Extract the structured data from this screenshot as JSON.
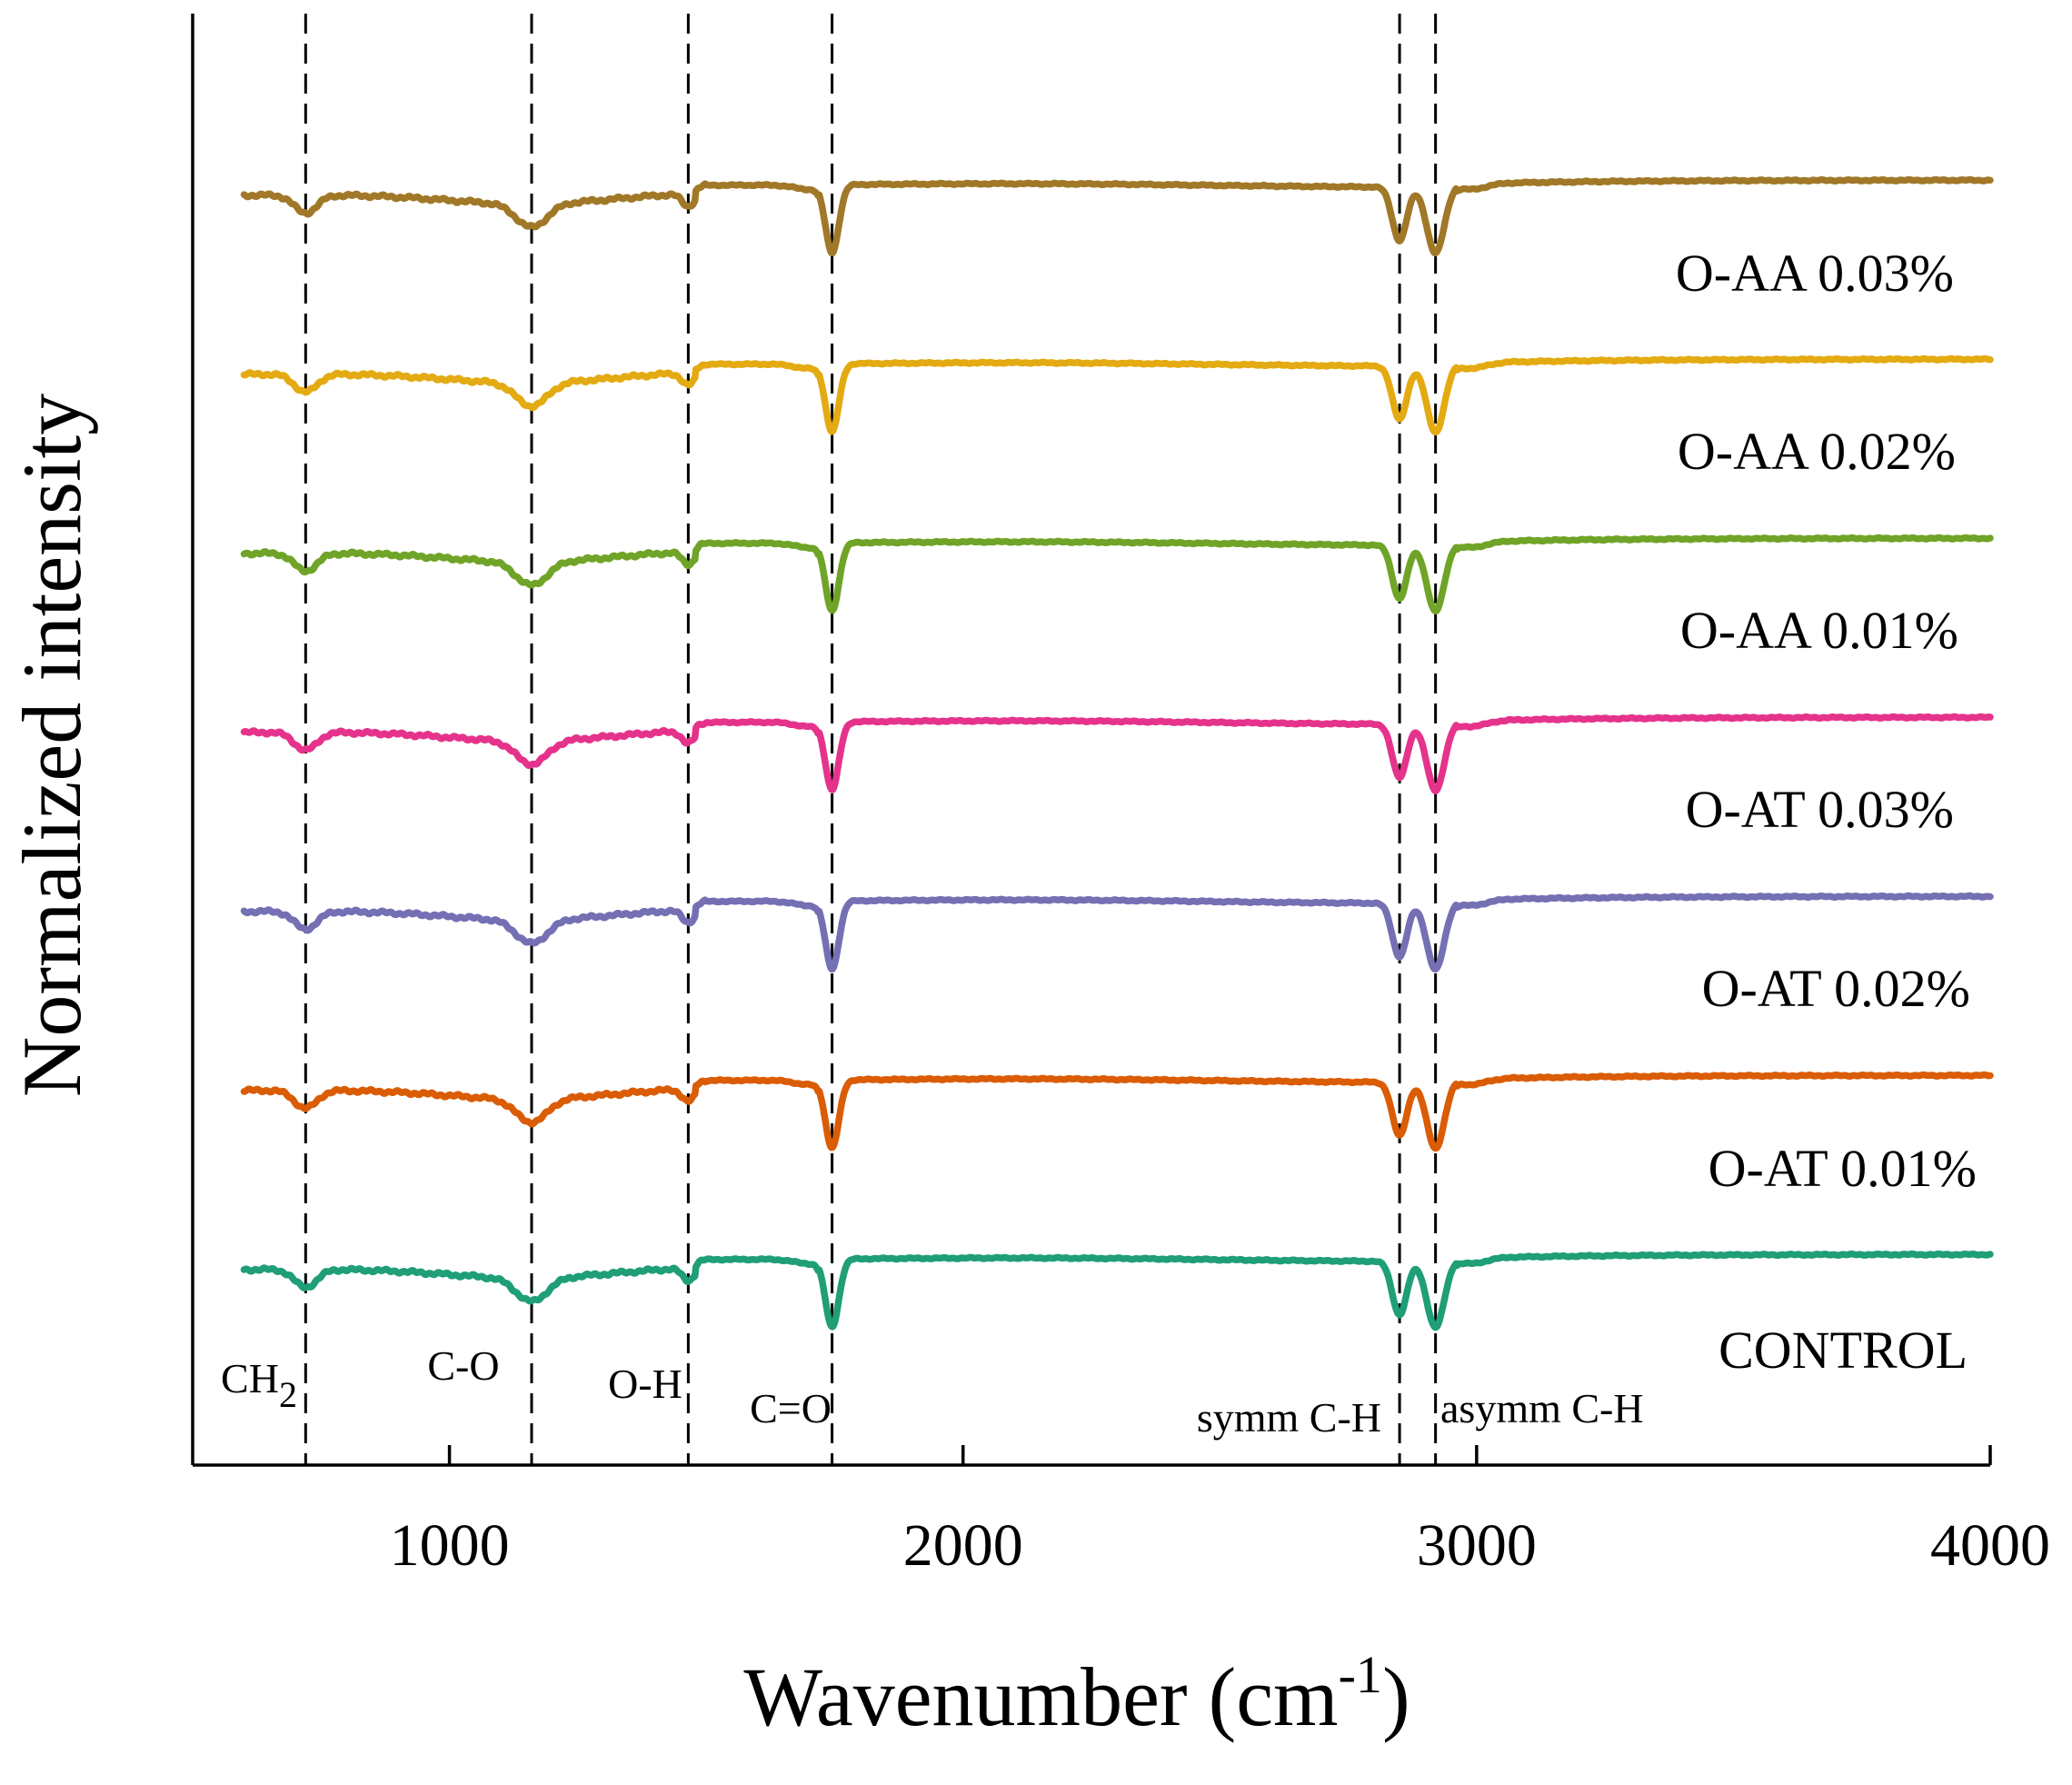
{
  "chart_data": {
    "type": "line",
    "title": "",
    "xlabel": "Wavenumber (cm",
    "xlabel_sup": "-1",
    "xlabel_close": ")",
    "ylabel": "Normalized intensity",
    "xlim": [
      500,
      4000
    ],
    "x_ticks": [
      1000,
      2000,
      3000,
      4000
    ],
    "x_tick_labels": [
      "1000",
      "2000",
      "3000",
      "4000"
    ],
    "ylim": [
      0,
      8
    ],
    "grid": false,
    "legend": "inline-right",
    "x_range": [
      600,
      4000
    ],
    "peaks": [
      {
        "x": 720,
        "label": "CH",
        "sub": "2",
        "depth": 0.1,
        "width": 22
      },
      {
        "x": 1160,
        "label": "C-O",
        "sub": "",
        "depth": 0.13,
        "width": 30
      },
      {
        "x": 1465,
        "label": "O-H",
        "sub": "",
        "depth": 0.07,
        "width": 12
      },
      {
        "x": 1745,
        "label": "C=O",
        "sub": "",
        "depth": 0.38,
        "width": 13
      },
      {
        "x": 2850,
        "label": "symm C-H",
        "sub": "",
        "depth": 0.3,
        "width": 14
      },
      {
        "x": 2920,
        "label": "asymm C-H",
        "sub": "",
        "depth": 0.38,
        "width": 17
      }
    ],
    "series": [
      {
        "name": "O-AA 0.03%",
        "color": "#A07828",
        "offset": 7.0
      },
      {
        "name": "O-AA 0.02%",
        "color": "#E3AA12",
        "offset": 6.0
      },
      {
        "name": "O-AA 0.01%",
        "color": "#6FA428",
        "offset": 5.0
      },
      {
        "name": "O-AT 0.03%",
        "color": "#E5338C",
        "offset": 4.0
      },
      {
        "name": "O-AT 0.02%",
        "color": "#7570B3",
        "offset": 3.0
      },
      {
        "name": "O-AT 0.01%",
        "color": "#DA5C05",
        "offset": 2.0
      },
      {
        "name": "CONTROL",
        "color": "#1F9E77",
        "offset": 1.0
      }
    ]
  }
}
